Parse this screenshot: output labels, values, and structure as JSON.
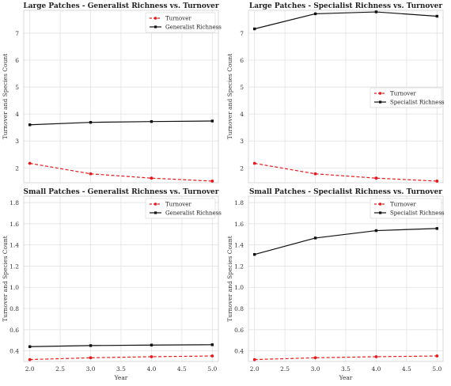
{
  "figure": {
    "ylabel": "Turnover and Species Count",
    "xlabel": "Year"
  },
  "chart_data": [
    {
      "type": "line",
      "title": "Large Patches - Generalist Richness vs. Turnover",
      "ylabel": "Turnover and Species Count",
      "xlabel": "",
      "x": [
        2.0,
        3.0,
        4.0,
        5.0
      ],
      "xlim": [
        1.9,
        5.1
      ],
      "ylim": [
        1.45,
        7.85
      ],
      "yticks": [
        2,
        3,
        4,
        5,
        6,
        7
      ],
      "show_xticklabels": false,
      "grid": true,
      "legend": "top-right",
      "series": [
        {
          "name": "Turnover",
          "values": [
            2.17,
            1.78,
            1.62,
            1.51
          ],
          "color": "#e8191c",
          "dash": true
        },
        {
          "name": "Generalist Richness",
          "values": [
            3.6,
            3.69,
            3.72,
            3.74
          ],
          "color": "#111111",
          "dash": false
        }
      ]
    },
    {
      "type": "line",
      "title": "Large Patches - Specialist Richness vs. Turnover",
      "ylabel": "Turnover and Species Count",
      "xlabel": "",
      "x": [
        2.0,
        3.0,
        4.0,
        5.0
      ],
      "xlim": [
        1.9,
        5.1
      ],
      "ylim": [
        1.45,
        7.85
      ],
      "yticks": [
        2,
        3,
        4,
        5,
        6,
        7
      ],
      "show_xticklabels": false,
      "grid": true,
      "legend": "center-right",
      "series": [
        {
          "name": "Turnover",
          "values": [
            2.17,
            1.78,
            1.62,
            1.51
          ],
          "color": "#e8191c",
          "dash": true
        },
        {
          "name": "Specialist Richness",
          "values": [
            7.16,
            7.72,
            7.79,
            7.63
          ],
          "color": "#111111",
          "dash": false
        }
      ]
    },
    {
      "type": "line",
      "title": "Small Patches - Generalist Richness vs. Turnover",
      "ylabel": "Turnover and Species Count",
      "xlabel": "Year",
      "x": [
        2.0,
        3.0,
        4.0,
        5.0
      ],
      "xlim": [
        1.9,
        5.1
      ],
      "ylim": [
        0.3,
        1.86
      ],
      "yticks": [
        0.4,
        0.6,
        0.8,
        1.0,
        1.2,
        1.4,
        1.6,
        1.8
      ],
      "xticks": [
        2.0,
        2.5,
        3.0,
        3.5,
        4.0,
        4.5,
        5.0
      ],
      "show_xticklabels": true,
      "grid": true,
      "legend": "top-right",
      "series": [
        {
          "name": "Turnover",
          "values": [
            0.318,
            0.335,
            0.345,
            0.352
          ],
          "color": "#e8191c",
          "dash": true
        },
        {
          "name": "Generalist Richness",
          "values": [
            0.44,
            0.45,
            0.455,
            0.458
          ],
          "color": "#111111",
          "dash": false
        }
      ]
    },
    {
      "type": "line",
      "title": "Small Patches - Specialist Richness vs. Turnover",
      "ylabel": "Turnover and Species Count",
      "xlabel": "Year",
      "x": [
        2.0,
        3.0,
        4.0,
        5.0
      ],
      "xlim": [
        1.9,
        5.1
      ],
      "ylim": [
        0.3,
        1.86
      ],
      "yticks": [
        0.4,
        0.6,
        0.8,
        1.0,
        1.2,
        1.4,
        1.6,
        1.8
      ],
      "xticks": [
        2.0,
        2.5,
        3.0,
        3.5,
        4.0,
        4.5,
        5.0
      ],
      "show_xticklabels": true,
      "grid": true,
      "legend": "top-right",
      "series": [
        {
          "name": "Turnover",
          "values": [
            0.318,
            0.335,
            0.345,
            0.352
          ],
          "color": "#e8191c",
          "dash": true
        },
        {
          "name": "Specialist Richness",
          "values": [
            1.31,
            1.465,
            1.535,
            1.555
          ],
          "color": "#111111",
          "dash": false
        }
      ]
    }
  ]
}
